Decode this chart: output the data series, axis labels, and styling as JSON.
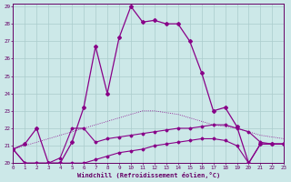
{
  "xlabel": "Windchill (Refroidissement éolien,°C)",
  "background_color": "#cce8e8",
  "grid_color": "#aacccc",
  "line_color": "#880088",
  "xmin": 0,
  "xmax": 23,
  "ymin": 20,
  "ymax": 29,
  "hours": [
    0,
    1,
    2,
    3,
    4,
    5,
    6,
    7,
    8,
    9,
    10,
    11,
    12,
    13,
    14,
    15,
    16,
    17,
    18,
    19,
    20,
    21,
    22,
    23
  ],
  "curve_main": [
    20.8,
    21.1,
    22.0,
    20.0,
    20.0,
    21.2,
    23.2,
    26.7,
    24.0,
    27.2,
    29.0,
    28.1,
    28.2,
    28.0,
    28.0,
    27.0,
    25.2,
    23.0,
    23.2,
    22.1,
    20.0,
    21.1,
    21.1,
    21.1
  ],
  "curve_dotted": [
    20.8,
    21.0,
    21.2,
    21.4,
    21.6,
    21.8,
    22.0,
    22.2,
    22.4,
    22.6,
    22.8,
    23.0,
    23.0,
    22.9,
    22.8,
    22.6,
    22.4,
    22.2,
    22.1,
    22.0,
    21.8,
    21.6,
    21.5,
    21.4
  ],
  "curve_mid": [
    20.8,
    20.0,
    20.0,
    20.0,
    20.3,
    22.0,
    22.0,
    21.2,
    21.4,
    21.5,
    21.6,
    21.7,
    21.8,
    21.9,
    22.0,
    22.0,
    22.1,
    22.2,
    22.2,
    22.0,
    21.8,
    21.2,
    21.1,
    21.1
  ],
  "curve_low": [
    20.8,
    20.0,
    20.0,
    20.0,
    20.0,
    20.0,
    20.0,
    20.2,
    20.4,
    20.6,
    20.7,
    20.8,
    21.0,
    21.1,
    21.2,
    21.3,
    21.4,
    21.4,
    21.3,
    21.0,
    20.0,
    21.1,
    21.1,
    21.1
  ]
}
